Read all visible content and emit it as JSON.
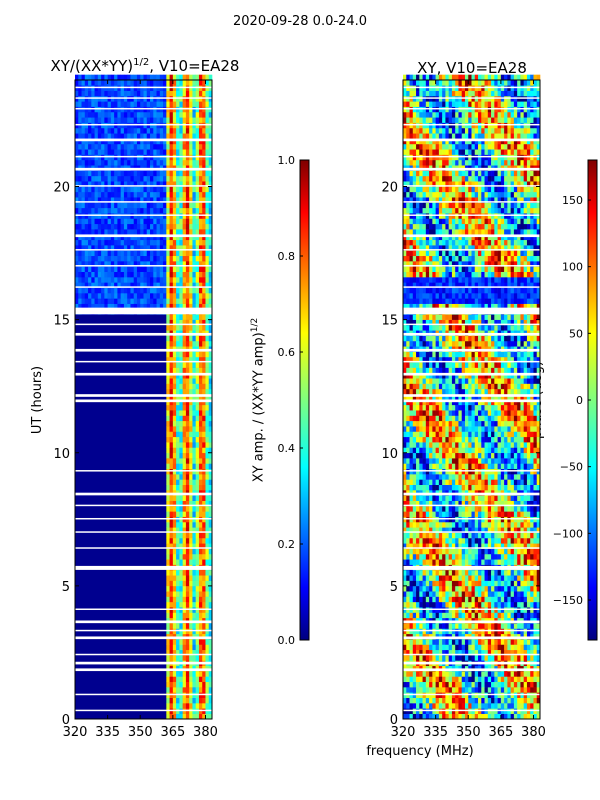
{
  "suptitle": "2020-09-28 0.0-24.0",
  "chart_data": [
    {
      "type": "heatmap",
      "title": "XY/(XX*YY)^1/2, V10=EA28",
      "title_main": "XY/(XX*YY)",
      "title_sup": "1/2",
      "title_tail": ", V10=EA28",
      "xlabel": "",
      "ylabel": "UT (hours)",
      "xlim": [
        320,
        383
      ],
      "ylim": [
        0,
        24
      ],
      "xticks": [
        320,
        335,
        350,
        365,
        380
      ],
      "yticks": [
        0,
        5,
        10,
        15,
        20
      ],
      "colormap": "jet",
      "vmin": 0.0,
      "vmax": 1.0,
      "colorbar_label": "XY amp. / (XX*YY amp)^1/2",
      "colorbar_ticks": [
        "0.0",
        "0.2",
        "0.4",
        "0.6",
        "0.8",
        "1.0"
      ]
    },
    {
      "type": "heatmap",
      "title": "XY, V10=EA28",
      "xlabel": "frequency (MHz)",
      "ylabel": "",
      "xlim": [
        320,
        383
      ],
      "ylim": [
        0,
        24
      ],
      "xticks": [
        320,
        335,
        350,
        365,
        380
      ],
      "yticks": [
        0,
        5,
        10,
        15,
        20
      ],
      "colormap": "jet",
      "vmin": -180,
      "vmax": 180,
      "colorbar_label": "phase (deg)",
      "colorbar_ticks": [
        "150",
        "100",
        "50",
        "0",
        "−50",
        "−100",
        "−150"
      ]
    }
  ],
  "colors": {
    "dark_blue": "#00008f",
    "jet": [
      "#00007f",
      "#0000ff",
      "#007fff",
      "#00ffff",
      "#7fff7f",
      "#ffff00",
      "#ff7f00",
      "#ff0000",
      "#7f0000"
    ]
  }
}
